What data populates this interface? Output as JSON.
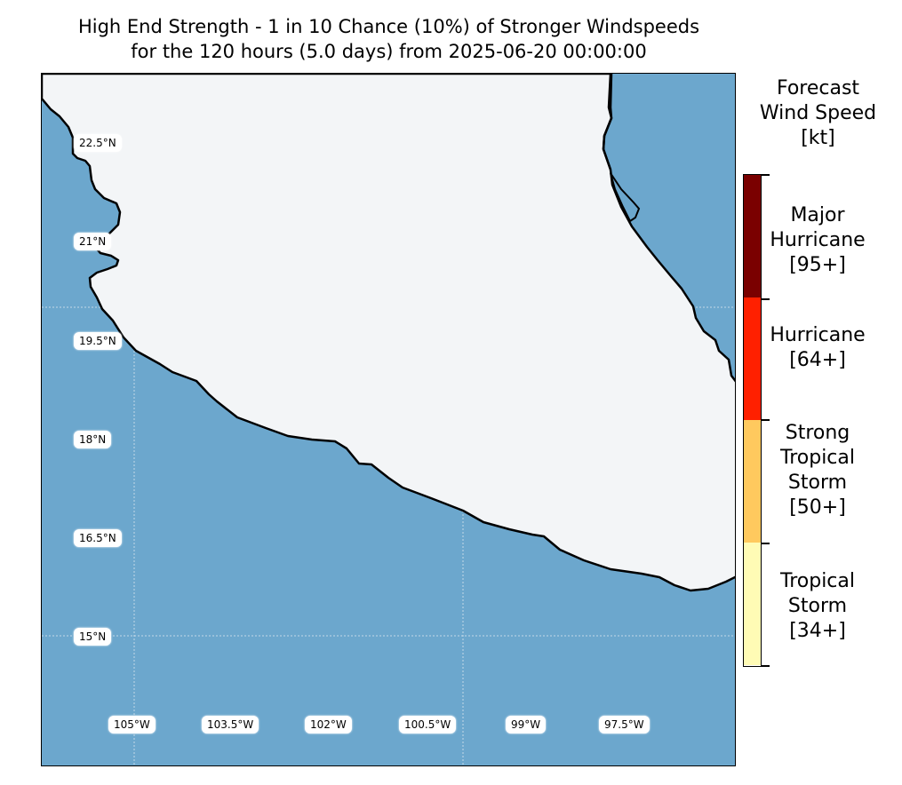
{
  "title": {
    "line1": "High End Strength - 1 in 10 Chance (10%) of Stronger Windspeeds",
    "line2": "for the 120 hours (5.0 days) from 2025-06-20 00:00:00"
  },
  "map": {
    "ocean_color": "#6ca7cd",
    "land_color": "#f3f5f7",
    "lat_labels": [
      "22.5°N",
      "21°N",
      "19.5°N",
      "18°N",
      "16.5°N",
      "15°N"
    ],
    "lon_labels": [
      "105°W",
      "103.5°W",
      "102°W",
      "100.5°W",
      "99°W",
      "97.5°W"
    ]
  },
  "legend": {
    "title_lines": [
      "Forecast",
      "Wind Speed",
      "[kt]"
    ],
    "categories": [
      {
        "lines": [
          "Major",
          "Hurricane",
          "[95+]"
        ],
        "color": "#7a0000"
      },
      {
        "lines": [
          "Hurricane",
          "[64+]"
        ],
        "color": "#ff2000"
      },
      {
        "lines": [
          "Strong",
          "Tropical",
          "Storm",
          "[50+]"
        ],
        "color": "#ffc95e"
      },
      {
        "lines": [
          "Tropical",
          "Storm",
          "[34+]"
        ],
        "color": "#fffbb5"
      }
    ]
  }
}
